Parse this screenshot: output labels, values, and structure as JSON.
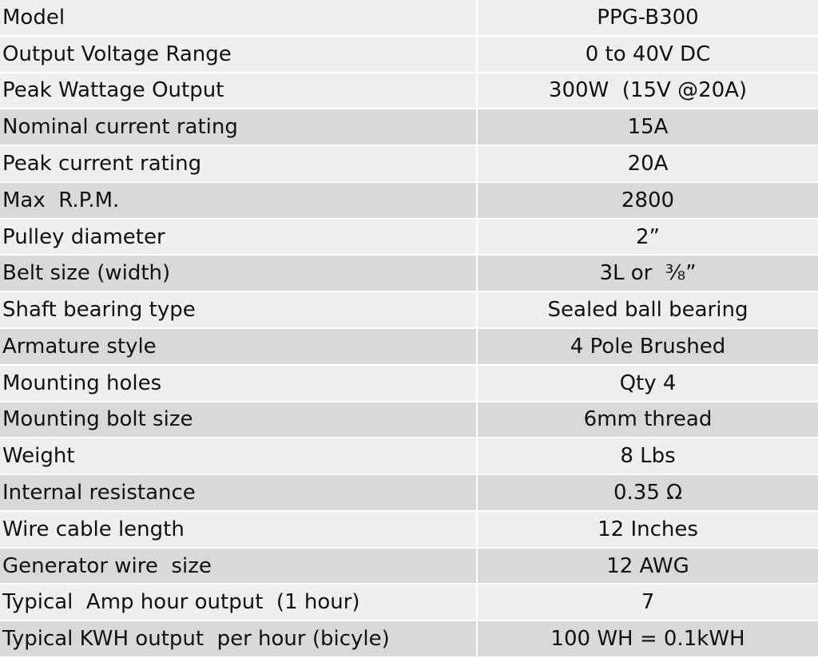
{
  "table": {
    "rows": [
      [
        "Model",
        "PPG-B300"
      ],
      [
        "Output Voltage Range",
        "0 to 40V DC"
      ],
      [
        "Peak Wattage Output",
        "300W  (15V @20A)"
      ],
      [
        "Nominal current rating",
        "15A"
      ],
      [
        "Peak current rating",
        "20A"
      ],
      [
        "Max  R.P.M.",
        "2800"
      ],
      [
        "Pulley diameter",
        "2”"
      ],
      [
        "Belt size (width)",
        "3L or  ⅜”"
      ],
      [
        "Shaft bearing type",
        "Sealed ball bearing"
      ],
      [
        "Armature style",
        "4 Pole Brushed"
      ],
      [
        "Mounting holes",
        "Qty 4"
      ],
      [
        "Mounting bolt size",
        "6mm thread"
      ],
      [
        "Weight",
        "8 Lbs"
      ],
      [
        "Internal resistance",
        "0.35 Ω"
      ],
      [
        "Wire cable length",
        "12 Inches"
      ],
      [
        "Generator wire  size",
        "12 AWG"
      ],
      [
        "Typical  Amp hour output  (1 hour)",
        "7"
      ],
      [
        "Typical KWH output  per hour (bicyle)",
        "100 WH = 0.1kWH"
      ]
    ]
  }
}
